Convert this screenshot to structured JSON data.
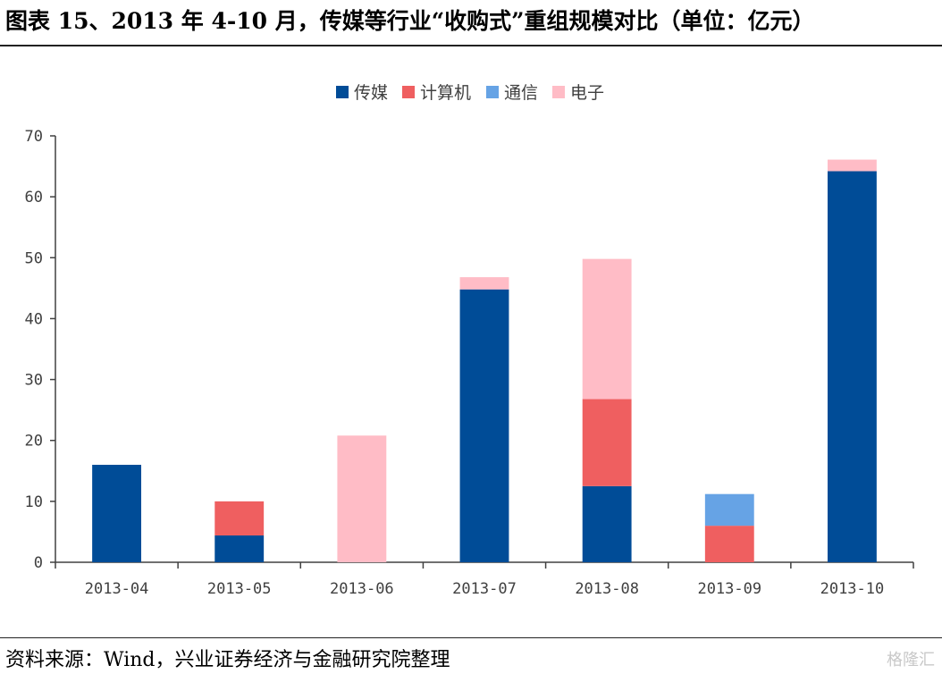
{
  "figure_title": "图表 15、2013 年 4-10 月，传媒等行业“收购式”重组规模对比（单位：亿元）",
  "source": "资料来源：Wind，兴业证券经济与金融研究院整理",
  "watermark": "格隆汇",
  "chart_data": {
    "type": "bar",
    "stacked": true,
    "title": "",
    "xlabel": "",
    "ylabel": "",
    "ylim": [
      0,
      70
    ],
    "yticks": [
      0,
      10,
      20,
      30,
      40,
      50,
      60,
      70
    ],
    "grid": false,
    "legend_position": "top-center",
    "categories": [
      "2013-04",
      "2013-05",
      "2013-06",
      "2013-07",
      "2013-08",
      "2013-09",
      "2013-10"
    ],
    "series": [
      {
        "name": "传媒",
        "color": "#004c97",
        "values": [
          16.0,
          4.4,
          0,
          44.8,
          12.5,
          0,
          64.2
        ]
      },
      {
        "name": "计算机",
        "color": "#ef5f60",
        "values": [
          0,
          5.6,
          0,
          0,
          14.3,
          6.0,
          0
        ]
      },
      {
        "name": "通信",
        "color": "#66a3e5",
        "values": [
          0,
          0,
          0,
          0,
          0,
          5.2,
          0
        ]
      },
      {
        "name": "电子",
        "color": "#ffbcc6",
        "values": [
          0,
          0,
          20.8,
          2.0,
          23.0,
          0,
          1.9
        ]
      }
    ]
  }
}
